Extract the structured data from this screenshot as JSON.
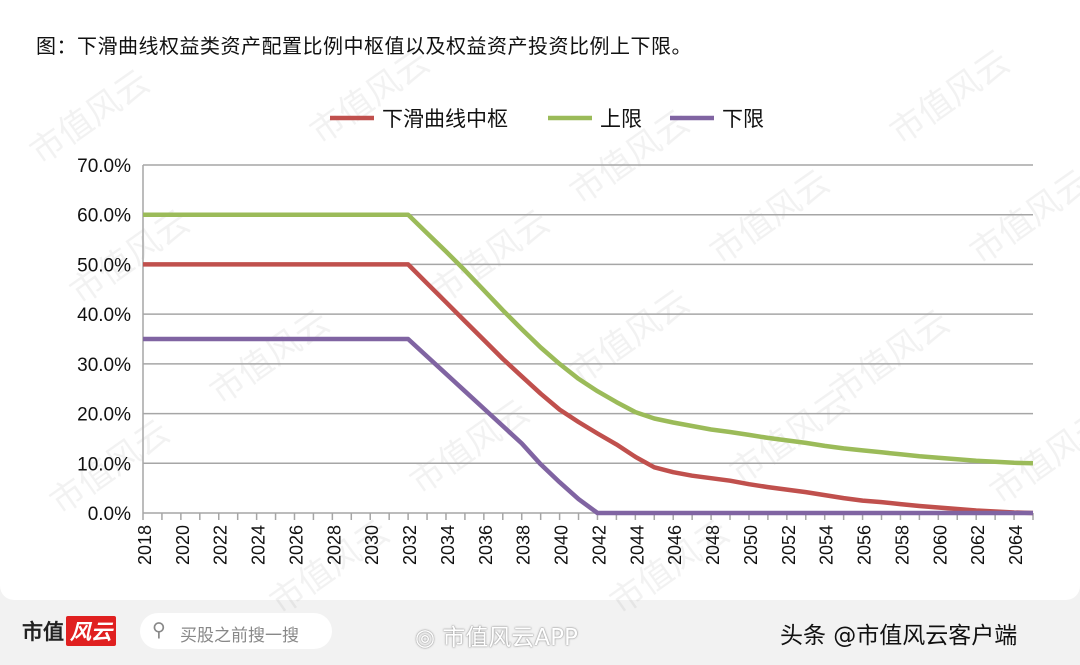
{
  "title": "图：下滑曲线权益类资产配置比例中枢值以及权益资产投资比例上下限。",
  "watermark": "市值风云",
  "footer": {
    "logo_text": "市值",
    "logo_mark": "风云",
    "search_placeholder": "买股之前搜一搜",
    "weibo": "市值风云APP",
    "toutiao": "头条 @市值风云客户端",
    "search_icon": "search-icon",
    "weibo_icon": "weibo-icon"
  },
  "chart_data": {
    "type": "line",
    "title": "",
    "xlabel": "",
    "ylabel": "",
    "ylim": [
      0,
      70
    ],
    "yticks": [
      "0.0%",
      "10.0%",
      "20.0%",
      "30.0%",
      "40.0%",
      "50.0%",
      "60.0%",
      "70.0%"
    ],
    "grid": "horizontal",
    "legend": "top",
    "x": [
      2018,
      2019,
      2020,
      2021,
      2022,
      2023,
      2024,
      2025,
      2026,
      2027,
      2028,
      2029,
      2030,
      2031,
      2032,
      2033,
      2034,
      2035,
      2036,
      2037,
      2038,
      2039,
      2040,
      2041,
      2042,
      2043,
      2044,
      2045,
      2046,
      2047,
      2048,
      2049,
      2050,
      2051,
      2052,
      2053,
      2054,
      2055,
      2056,
      2057,
      2058,
      2059,
      2060,
      2061,
      2062,
      2063,
      2064,
      2065
    ],
    "xtick_labels": [
      "2018",
      "2020",
      "2022",
      "2024",
      "2026",
      "2028",
      "2030",
      "2032",
      "2034",
      "2036",
      "2038",
      "2040",
      "2042",
      "2044",
      "2046",
      "2048",
      "2050",
      "2052",
      "2054",
      "2056",
      "2058",
      "2060",
      "2062",
      "2064"
    ],
    "series": [
      {
        "name": "下滑曲线中枢",
        "color": "#c0504d",
        "values": [
          50,
          50,
          50,
          50,
          50,
          50,
          50,
          50,
          50,
          50,
          50,
          50,
          50,
          50,
          50,
          46.2,
          42.4,
          38.6,
          34.8,
          31,
          27.5,
          24,
          20.8,
          18.3,
          16,
          13.8,
          11.3,
          9.2,
          8.2,
          7.5,
          7,
          6.5,
          5.8,
          5.2,
          4.7,
          4.2,
          3.6,
          3,
          2.5,
          2.2,
          1.8,
          1.4,
          1.1,
          0.8,
          0.5,
          0.3,
          0.1,
          0
        ]
      },
      {
        "name": "上限",
        "color": "#9bbb59",
        "values": [
          60,
          60,
          60,
          60,
          60,
          60,
          60,
          60,
          60,
          60,
          60,
          60,
          60,
          60,
          60,
          56.3,
          52.6,
          48.8,
          44.8,
          40.8,
          37,
          33.3,
          30,
          27,
          24.5,
          22.3,
          20.3,
          19,
          18.2,
          17.5,
          16.8,
          16.3,
          15.7,
          15.1,
          14.6,
          14.1,
          13.5,
          13,
          12.6,
          12.2,
          11.8,
          11.4,
          11.1,
          10.8,
          10.5,
          10.3,
          10.1,
          10
        ]
      },
      {
        "name": "下限",
        "color": "#8064a2",
        "values": [
          35,
          35,
          35,
          35,
          35,
          35,
          35,
          35,
          35,
          35,
          35,
          35,
          35,
          35,
          35,
          31.5,
          28,
          24.5,
          21,
          17.5,
          14,
          9.8,
          6.2,
          2.8,
          0,
          0,
          0,
          0,
          0,
          0,
          0,
          0,
          0,
          0,
          0,
          0,
          0,
          0,
          0,
          0,
          0,
          0,
          0,
          0,
          0,
          0,
          0,
          0
        ]
      }
    ]
  }
}
